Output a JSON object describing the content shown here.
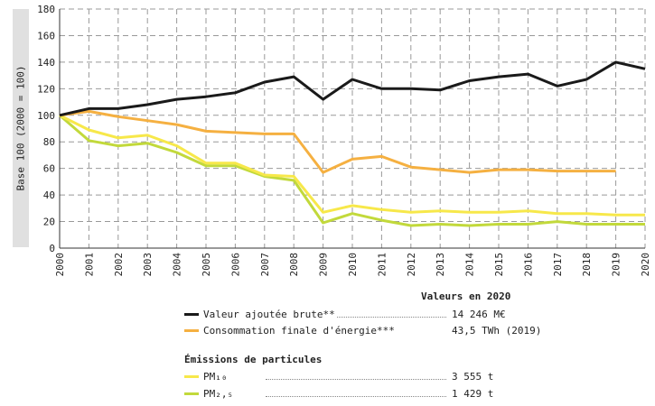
{
  "chart_data": {
    "type": "line",
    "ylabel": "Base 100 (2000 = 100)",
    "ylim": [
      0,
      180
    ],
    "yticks": [
      0,
      20,
      40,
      60,
      80,
      100,
      120,
      140,
      160,
      180
    ],
    "x": [
      "2000",
      "2001",
      "2002",
      "2003",
      "2004",
      "2005",
      "2006",
      "2007",
      "2008",
      "2009",
      "2010",
      "2011",
      "2012",
      "2013",
      "2014",
      "2015",
      "2016",
      "2017",
      "2018",
      "2019",
      "2020"
    ],
    "grid": true,
    "series": [
      {
        "name": "Valeur ajoutée brute**",
        "color": "#1a1a1a",
        "values": [
          100,
          105,
          105,
          108,
          112,
          114,
          117,
          125,
          129,
          112,
          127,
          120,
          120,
          119,
          126,
          129,
          131,
          122,
          127,
          140,
          135
        ]
      },
      {
        "name": "Consommation finale d'énergie***",
        "color": "#f5b041",
        "values": [
          100,
          103,
          99,
          96,
          93,
          88,
          87,
          86,
          86,
          57,
          67,
          69,
          61,
          59,
          57,
          59,
          59,
          58,
          58,
          58,
          null
        ]
      },
      {
        "name": "PM₁₀",
        "color": "#f7e84a",
        "values": [
          100,
          89,
          83,
          85,
          77,
          64,
          64,
          55,
          54,
          27,
          32,
          29,
          27,
          28,
          27,
          27,
          28,
          26,
          26,
          25,
          25
        ]
      },
      {
        "name": "PM₂,₅",
        "color": "#c2d93b",
        "values": [
          100,
          81,
          77,
          79,
          72,
          62,
          62,
          54,
          51,
          19,
          26,
          21,
          17,
          18,
          17,
          18,
          18,
          20,
          18,
          18,
          18
        ]
      }
    ]
  },
  "legend": {
    "header": "Valeurs en 2020",
    "group_title": "Émissions de particules",
    "items": [
      {
        "label": "Valeur ajoutée brute**",
        "value": "14 246 M€",
        "color": "#1a1a1a"
      },
      {
        "label": "Consommation finale d'énergie***",
        "value": "43,5 TWh (2019)",
        "color": "#f5b041"
      },
      {
        "label": "PM₁₀",
        "value": "3 555 t",
        "color": "#f7e84a"
      },
      {
        "label": "PM₂,₅",
        "value": "1 429 t",
        "color": "#c2d93b"
      }
    ]
  }
}
